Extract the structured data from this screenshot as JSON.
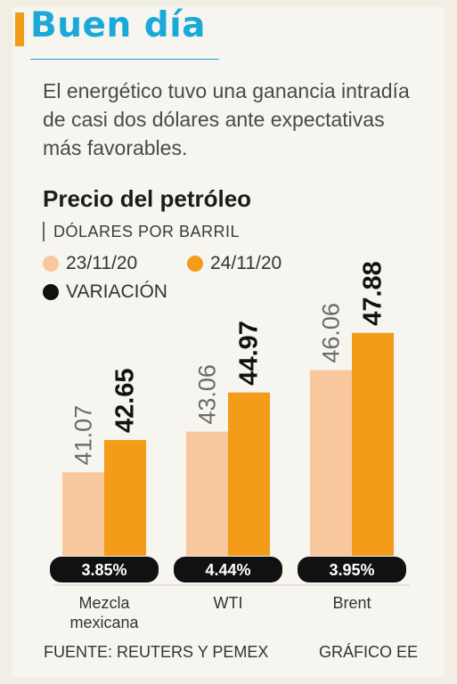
{
  "header": {
    "title": "Buen día",
    "subtitle": "El energético tuvo una ganancia intradía de casi dos dólares ante expectativas más favorables."
  },
  "colors": {
    "accent_blue": "#1aa9d8",
    "series_1": "#f9c79d",
    "series_2": "#f39c1a",
    "variation": "#111111"
  },
  "chart_data": {
    "type": "bar",
    "title": "Precio del petróleo",
    "unit_label": "DÓLARES POR BARRIL",
    "categories": [
      "Mezcla mexicana",
      "WTI",
      "Brent"
    ],
    "category_labels": [
      [
        "Mezcla",
        "mexicana"
      ],
      [
        "WTI"
      ],
      [
        "Brent"
      ]
    ],
    "series": [
      {
        "name": "23/11/20",
        "values": [
          41.07,
          43.06,
          46.06
        ],
        "labels": [
          "41.07",
          "43.06",
          "46.06"
        ]
      },
      {
        "name": "24/11/20",
        "values": [
          42.65,
          44.97,
          47.88
        ],
        "labels": [
          "42.65",
          "44.97",
          "47.88"
        ]
      }
    ],
    "variation": {
      "name": "VARIACIÓN",
      "labels": [
        "3.85%",
        "4.44%",
        "3.95%"
      ]
    },
    "ylim": [
      37,
      50
    ],
    "grid": false,
    "legend_position": "top-left"
  },
  "footer": {
    "source": "FUENTE: REUTERS Y PEMEX",
    "credit": "GRÁFICO EE"
  }
}
